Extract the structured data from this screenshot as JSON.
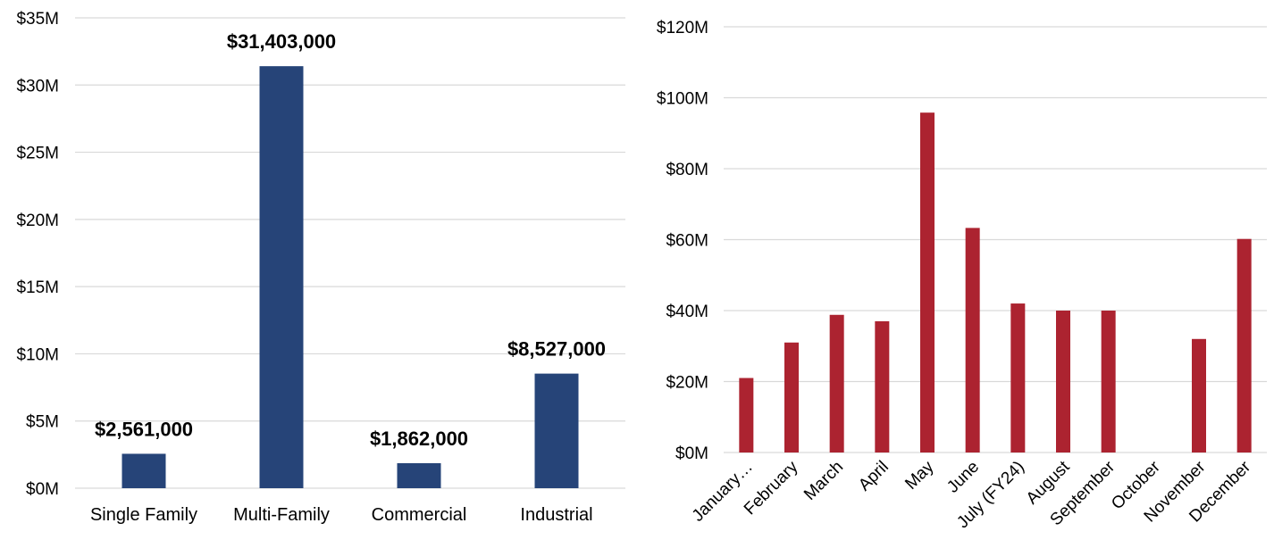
{
  "chart_data": [
    {
      "type": "bar",
      "categories": [
        "Single Family",
        "Multi-Family",
        "Commercial",
        "Industrial"
      ],
      "values": [
        2561000,
        31403000,
        1862000,
        8527000
      ],
      "data_labels": [
        "$2,561,000",
        "$31,403,000",
        "$1,862,000",
        "$8,527,000"
      ],
      "y_ticks": [
        "$0M",
        "$5M",
        "$10M",
        "$15M",
        "$20M",
        "$25M",
        "$30M",
        "$35M"
      ],
      "ylim": [
        0,
        35000000
      ],
      "grid": true,
      "legend": "none",
      "color": "#264478"
    },
    {
      "type": "bar",
      "categories": [
        "January…",
        "February",
        "March",
        "April",
        "May",
        "June",
        "July (FY24)",
        "August",
        "September",
        "October",
        "November",
        "December"
      ],
      "values": [
        21000000,
        31000000,
        38800000,
        37000000,
        95800000,
        63300000,
        42000000,
        40000000,
        40000000,
        0,
        32000000,
        60200000
      ],
      "y_ticks": [
        "$0M",
        "$20M",
        "$40M",
        "$60M",
        "$80M",
        "$100M",
        "$120M"
      ],
      "ylim": [
        0,
        120000000
      ],
      "grid": true,
      "legend": "none",
      "color": "#ac2330"
    }
  ]
}
